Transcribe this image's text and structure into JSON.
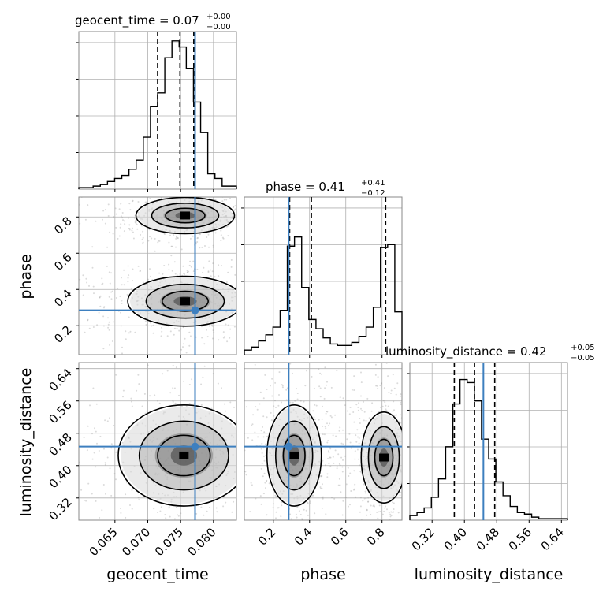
{
  "chart_data": {
    "type": "corner",
    "colors": {
      "truth": "#3d7fbf",
      "hist": "#000000",
      "grid": "#b0b0b0",
      "quantile": "#000000"
    },
    "grid": true,
    "parameters": [
      {
        "key": "geocent_time",
        "label": "geocent_time",
        "title": {
          "main": "geocent_time = 0.07",
          "upper": "+0.00",
          "lower": "−0.00"
        },
        "range": [
          0.0595,
          0.0835
        ],
        "ticks": [
          0.065,
          0.07,
          0.075,
          0.08
        ],
        "tick_labels": [
          "0.065",
          "0.070",
          "0.075",
          "0.080"
        ],
        "quantiles": [
          0.0715,
          0.0749,
          0.077
        ],
        "truth": 0.0772,
        "hist_values": [
          0.01,
          0.01,
          0.02,
          0.03,
          0.05,
          0.07,
          0.09,
          0.13,
          0.19,
          0.34,
          0.54,
          0.63,
          0.86,
          0.97,
          0.93,
          0.79,
          0.57,
          0.37,
          0.1,
          0.07,
          0.02,
          0.02
        ]
      },
      {
        "key": "phase",
        "label": "phase",
        "title": {
          "main": "phase = 0.41",
          "upper": "+0.41",
          "lower": "−0.12"
        },
        "range": [
          0.04,
          0.91
        ],
        "ticks": [
          0.2,
          0.4,
          0.6,
          0.8
        ],
        "tick_labels": [
          "0.2",
          "0.4",
          "0.6",
          "0.8"
        ],
        "quantiles": [
          0.29,
          0.41,
          0.82
        ],
        "truth": 0.285,
        "hist_values": [
          0.03,
          0.05,
          0.09,
          0.13,
          0.18,
          0.29,
          0.71,
          0.77,
          0.44,
          0.23,
          0.17,
          0.11,
          0.07,
          0.06,
          0.06,
          0.08,
          0.12,
          0.18,
          0.31,
          0.7,
          0.72,
          0.28
        ]
      },
      {
        "key": "luminosity_distance",
        "label": "luminosity_distance",
        "title": {
          "main": "luminosity_distance = 0.42",
          "upper": "+0.05",
          "lower": "−0.05"
        },
        "range": [
          0.265,
          0.655
        ],
        "ticks": [
          0.32,
          0.4,
          0.48,
          0.56,
          0.64
        ],
        "tick_labels": [
          "0.32",
          "0.40",
          "0.48",
          "0.56",
          "0.64"
        ],
        "quantiles": [
          0.375,
          0.425,
          0.475
        ],
        "truth": 0.447,
        "hist_values": [
          0.03,
          0.05,
          0.08,
          0.15,
          0.27,
          0.48,
          0.76,
          0.92,
          0.9,
          0.78,
          0.53,
          0.4,
          0.25,
          0.16,
          0.09,
          0.05,
          0.04,
          0.02,
          0.01,
          0.01,
          0.01,
          0.01
        ]
      }
    ],
    "contours": [
      {
        "x": "geocent_time",
        "y": "phase",
        "modes": [
          {
            "center": [
              0.0757,
              0.808
            ],
            "spread": [
              0.003,
              0.04
            ]
          },
          {
            "center": [
              0.0757,
              0.335
            ],
            "spread": [
              0.0035,
              0.055
            ]
          }
        ],
        "levels_scale": [
          1.0,
          1.7,
          2.5
        ]
      },
      {
        "x": "geocent_time",
        "y": "luminosity_distance",
        "modes": [
          {
            "center": [
              0.0755,
              0.425
            ],
            "spread": [
              0.004,
              0.05
            ]
          }
        ],
        "levels_scale": [
          1.0,
          1.7,
          2.5
        ]
      },
      {
        "x": "phase",
        "y": "luminosity_distance",
        "modes": [
          {
            "center": [
              0.315,
              0.425
            ],
            "spread": [
              0.06,
              0.05
            ]
          },
          {
            "center": [
              0.81,
              0.42
            ],
            "spread": [
              0.05,
              0.045
            ]
          }
        ],
        "levels_scale": [
          1.0,
          1.7,
          2.5
        ]
      }
    ]
  }
}
